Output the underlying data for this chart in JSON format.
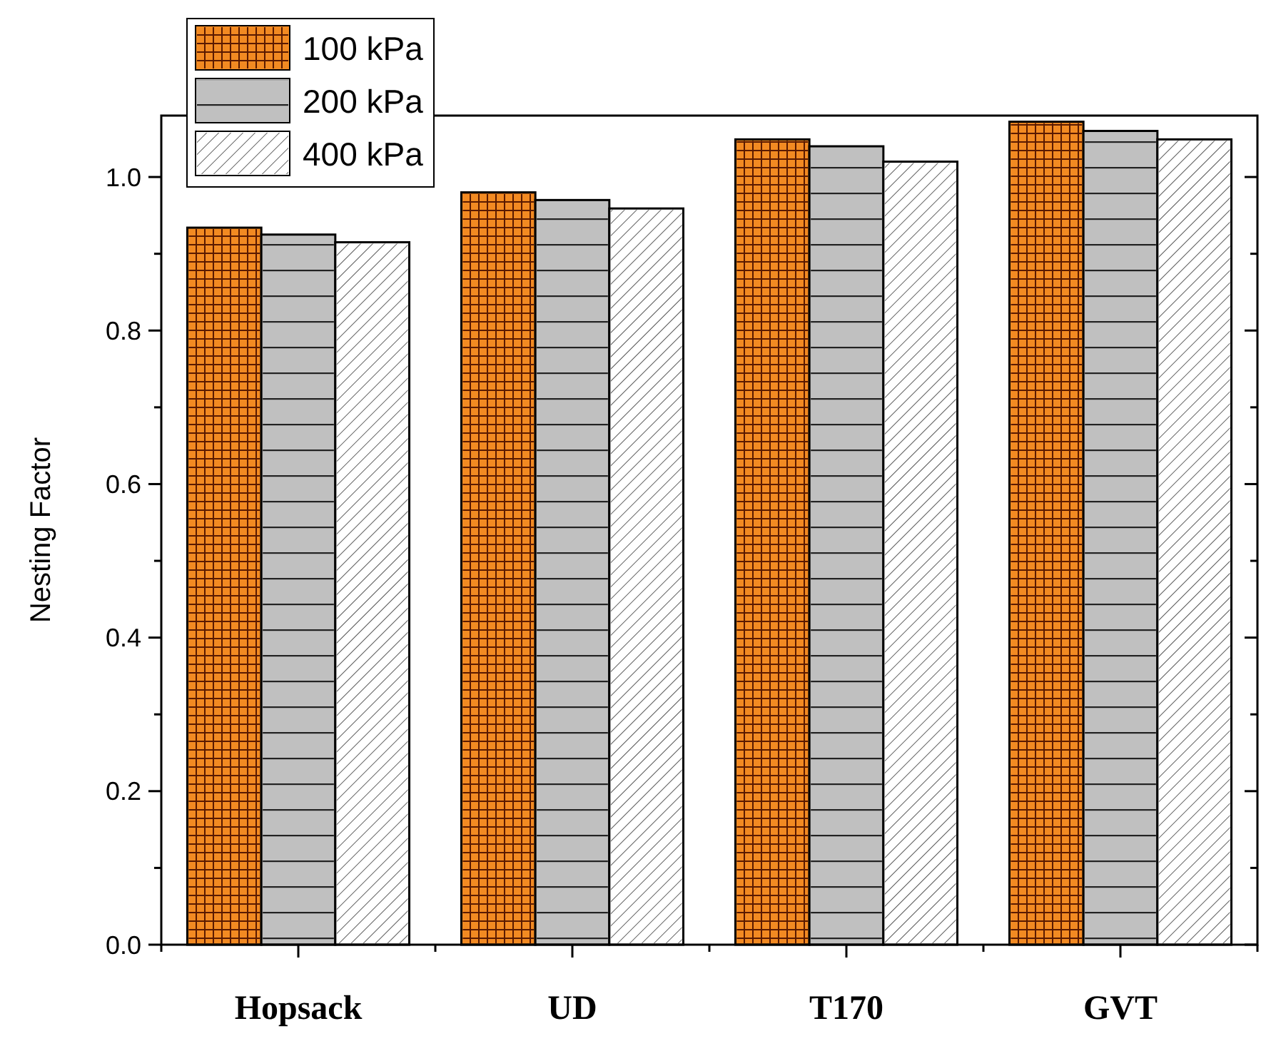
{
  "chart_data": {
    "type": "bar",
    "ylabel": "Nesting Factor",
    "categories": [
      "Hopsack",
      "UD",
      "T170",
      "GVT"
    ],
    "series": [
      {
        "name": "100 kPa",
        "color": "#f28a22",
        "values": [
          0.934,
          0.98,
          1.049,
          1.072
        ]
      },
      {
        "name": "200 kPa",
        "color": "#c0c0c0",
        "values": [
          0.925,
          0.97,
          1.04,
          1.06
        ]
      },
      {
        "name": "400 kPa",
        "color": "#ffffff",
        "values": [
          0.915,
          0.959,
          1.02,
          1.049
        ]
      }
    ],
    "ylim": [
      0,
      1.08
    ],
    "yticks": [
      {
        "value": 0,
        "label": "0.0"
      },
      {
        "value": 0.1,
        "label": null
      },
      {
        "value": 0.2,
        "label": "0.2"
      },
      {
        "value": 0.3,
        "label": null
      },
      {
        "value": 0.4,
        "label": "0.4"
      },
      {
        "value": 0.5,
        "label": null
      },
      {
        "value": 0.6,
        "label": "0.6"
      },
      {
        "value": 0.7,
        "label": null
      },
      {
        "value": 0.8,
        "label": "0.8"
      },
      {
        "value": 0.9,
        "label": null
      },
      {
        "value": 1.0,
        "label": "1.0"
      }
    ],
    "grid": false,
    "legend": "top left"
  }
}
